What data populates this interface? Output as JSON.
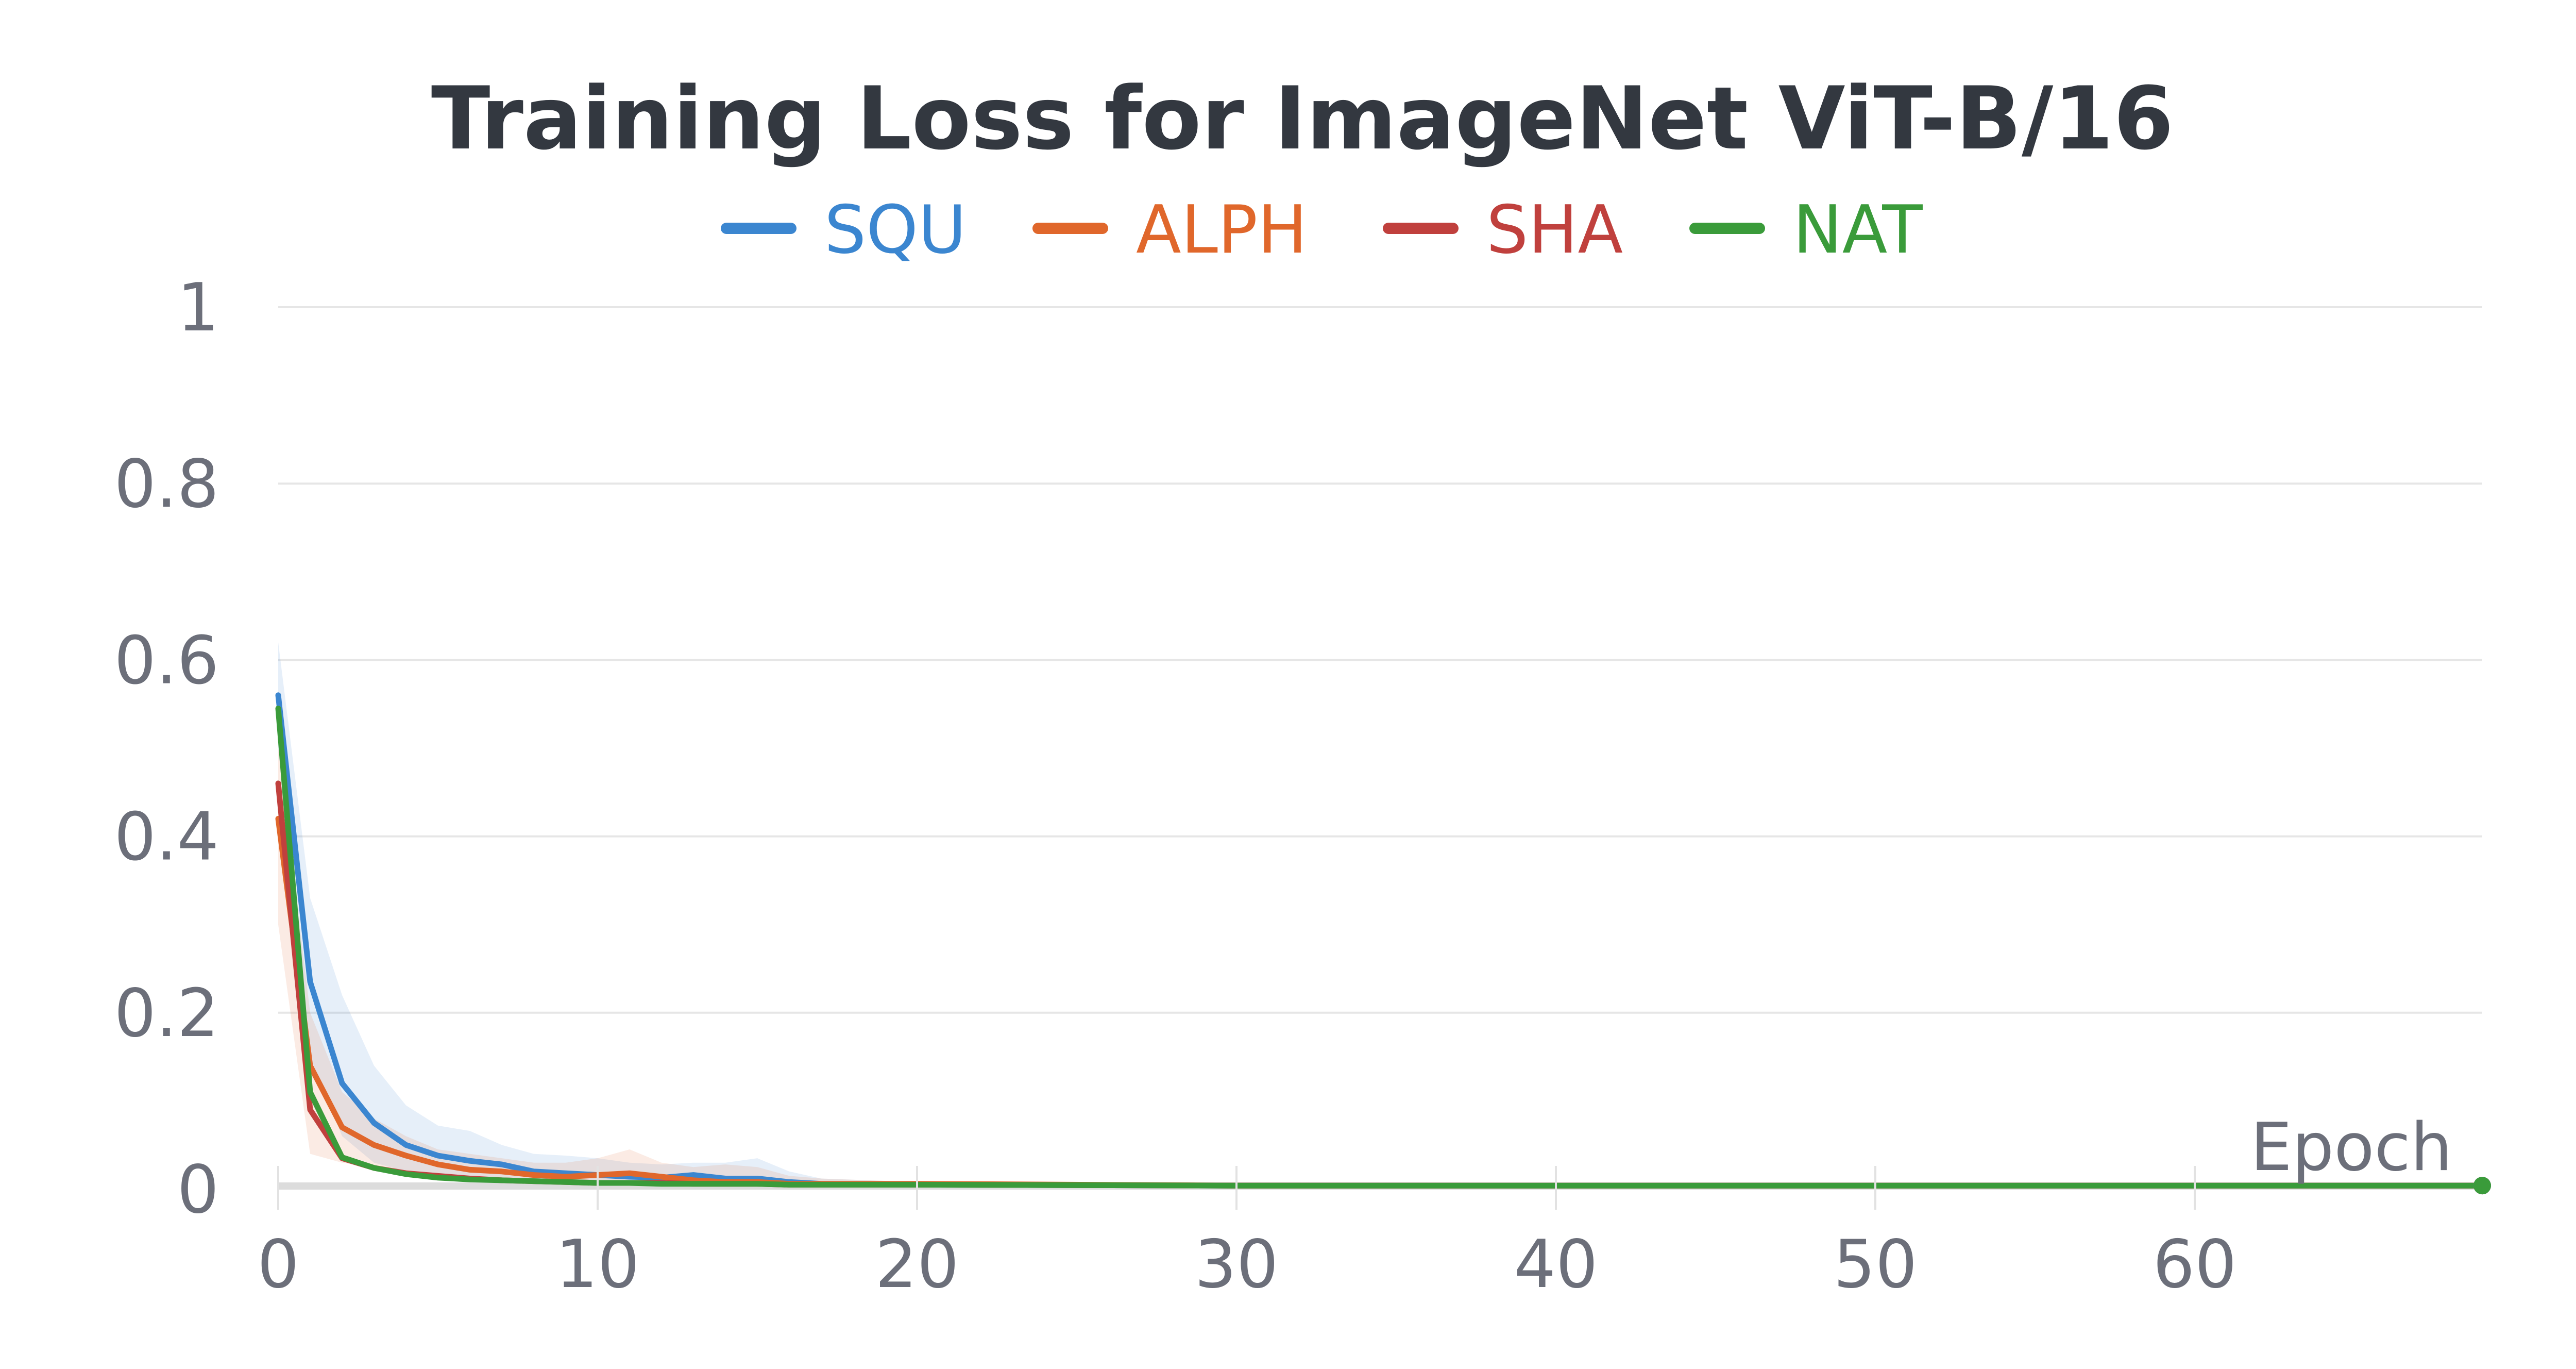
{
  "chart_data": {
    "type": "line",
    "title": "Training Loss for ImageNet ViT-B/16",
    "xlabel": "Epoch",
    "ylabel": "",
    "xlim": [
      0,
      69
    ],
    "ylim": [
      0,
      1
    ],
    "grid": true,
    "legend_position": "top-center",
    "x_ticks": [
      0,
      10,
      20,
      30,
      40,
      50,
      60
    ],
    "y_ticks": [
      0,
      0.2,
      0.4,
      0.6,
      0.8,
      1
    ],
    "y_tick_labels": [
      "0",
      "0.2",
      "0.4",
      "0.6",
      "0.8",
      "1"
    ],
    "series": [
      {
        "name": "SQU",
        "color": "#3b86d0",
        "points": [
          [
            0,
            0.56
          ],
          [
            1,
            0.235
          ],
          [
            2,
            0.12
          ],
          [
            3,
            0.075
          ],
          [
            4,
            0.05
          ],
          [
            5,
            0.038
          ],
          [
            6,
            0.032
          ],
          [
            7,
            0.028
          ],
          [
            8,
            0.02
          ],
          [
            9,
            0.018
          ],
          [
            10,
            0.016
          ],
          [
            11,
            0.014
          ],
          [
            12,
            0.013
          ],
          [
            13,
            0.016
          ],
          [
            14,
            0.012
          ],
          [
            15,
            0.012
          ],
          [
            16,
            0.008
          ],
          [
            17,
            0.006
          ],
          [
            20,
            0.005
          ],
          [
            30,
            0.004
          ],
          [
            40,
            0.004
          ],
          [
            50,
            0.004
          ],
          [
            60,
            0.004
          ],
          [
            69,
            0.004
          ]
        ],
        "band_upper": [
          [
            0,
            0.62
          ],
          [
            1,
            0.33
          ],
          [
            2,
            0.22
          ],
          [
            3,
            0.14
          ],
          [
            4,
            0.095
          ],
          [
            5,
            0.072
          ],
          [
            6,
            0.066
          ],
          [
            7,
            0.05
          ],
          [
            8,
            0.04
          ],
          [
            9,
            0.038
          ],
          [
            10,
            0.035
          ],
          [
            11,
            0.03
          ],
          [
            12,
            0.028
          ],
          [
            13,
            0.03
          ],
          [
            14,
            0.03
          ],
          [
            15,
            0.035
          ],
          [
            16,
            0.02
          ],
          [
            17,
            0.012
          ],
          [
            20,
            0.008
          ],
          [
            69,
            0.006
          ]
        ],
        "band_lower": [
          [
            0,
            0.5
          ],
          [
            1,
            0.15
          ],
          [
            2,
            0.06
          ],
          [
            3,
            0.03
          ],
          [
            4,
            0.02
          ],
          [
            5,
            0.012
          ],
          [
            6,
            0.01
          ],
          [
            7,
            0.008
          ],
          [
            8,
            0.006
          ],
          [
            9,
            0.005
          ],
          [
            10,
            0.004
          ],
          [
            11,
            0.004
          ],
          [
            12,
            0.003
          ],
          [
            13,
            0.004
          ],
          [
            14,
            0.003
          ],
          [
            15,
            0.003
          ],
          [
            16,
            0.002
          ],
          [
            17,
            0.002
          ],
          [
            20,
            0.002
          ],
          [
            69,
            0.002
          ]
        ]
      },
      {
        "name": "ALPH",
        "color": "#e0672b",
        "points": [
          [
            0,
            0.42
          ],
          [
            1,
            0.14
          ],
          [
            2,
            0.07
          ],
          [
            3,
            0.05
          ],
          [
            4,
            0.038
          ],
          [
            5,
            0.028
          ],
          [
            6,
            0.022
          ],
          [
            7,
            0.02
          ],
          [
            8,
            0.016
          ],
          [
            9,
            0.014
          ],
          [
            10,
            0.016
          ],
          [
            11,
            0.018
          ],
          [
            12,
            0.014
          ],
          [
            13,
            0.01
          ],
          [
            14,
            0.008
          ],
          [
            15,
            0.008
          ],
          [
            16,
            0.006
          ],
          [
            17,
            0.006
          ],
          [
            20,
            0.006
          ],
          [
            30,
            0.004
          ],
          [
            40,
            0.004
          ],
          [
            50,
            0.004
          ],
          [
            60,
            0.004
          ],
          [
            69,
            0.004
          ]
        ],
        "band_upper": [
          [
            0,
            0.5
          ],
          [
            1,
            0.2
          ],
          [
            2,
            0.11
          ],
          [
            3,
            0.08
          ],
          [
            4,
            0.06
          ],
          [
            5,
            0.045
          ],
          [
            6,
            0.04
          ],
          [
            7,
            0.035
          ],
          [
            8,
            0.03
          ],
          [
            9,
            0.03
          ],
          [
            10,
            0.035
          ],
          [
            11,
            0.045
          ],
          [
            12,
            0.03
          ],
          [
            13,
            0.025
          ],
          [
            14,
            0.028
          ],
          [
            15,
            0.025
          ],
          [
            16,
            0.015
          ],
          [
            17,
            0.012
          ],
          [
            20,
            0.008
          ],
          [
            69,
            0.006
          ]
        ],
        "band_lower": [
          [
            0,
            0.3
          ],
          [
            1,
            0.04
          ],
          [
            2,
            0.03
          ],
          [
            3,
            0.025
          ],
          [
            4,
            0.02
          ],
          [
            5,
            0.015
          ],
          [
            6,
            0.01
          ],
          [
            7,
            0.008
          ],
          [
            8,
            0.006
          ],
          [
            9,
            0.005
          ],
          [
            10,
            0.005
          ],
          [
            11,
            0.005
          ],
          [
            12,
            0.004
          ],
          [
            13,
            0.004
          ],
          [
            14,
            0.003
          ],
          [
            15,
            0.003
          ],
          [
            16,
            0.002
          ],
          [
            17,
            0.002
          ],
          [
            20,
            0.002
          ],
          [
            69,
            0.002
          ]
        ]
      },
      {
        "name": "SHA",
        "color": "#c0403d",
        "points": [
          [
            0,
            0.46
          ],
          [
            1,
            0.09
          ],
          [
            2,
            0.035
          ],
          [
            3,
            0.024
          ],
          [
            4,
            0.018
          ],
          [
            5,
            0.015
          ],
          [
            6,
            0.012
          ],
          [
            7,
            0.01
          ],
          [
            8,
            0.009
          ],
          [
            9,
            0.008
          ],
          [
            10,
            0.007
          ],
          [
            11,
            0.007
          ],
          [
            12,
            0.007
          ],
          [
            13,
            0.006
          ],
          [
            14,
            0.006
          ],
          [
            15,
            0.006
          ],
          [
            16,
            0.005
          ],
          [
            17,
            0.005
          ],
          [
            20,
            0.005
          ],
          [
            30,
            0.004
          ],
          [
            40,
            0.004
          ],
          [
            50,
            0.004
          ],
          [
            60,
            0.004
          ],
          [
            69,
            0.004
          ]
        ]
      },
      {
        "name": "NAT",
        "color": "#3a9b3a",
        "points": [
          [
            0,
            0.545
          ],
          [
            1,
            0.11
          ],
          [
            2,
            0.036
          ],
          [
            3,
            0.024
          ],
          [
            4,
            0.017
          ],
          [
            5,
            0.013
          ],
          [
            6,
            0.011
          ],
          [
            7,
            0.01
          ],
          [
            8,
            0.009
          ],
          [
            9,
            0.008
          ],
          [
            10,
            0.007
          ],
          [
            11,
            0.007
          ],
          [
            12,
            0.006
          ],
          [
            13,
            0.006
          ],
          [
            14,
            0.006
          ],
          [
            15,
            0.006
          ],
          [
            16,
            0.005
          ],
          [
            17,
            0.005
          ],
          [
            20,
            0.005
          ],
          [
            30,
            0.004
          ],
          [
            40,
            0.004
          ],
          [
            50,
            0.004
          ],
          [
            60,
            0.004
          ],
          [
            69,
            0.004
          ]
        ]
      }
    ]
  }
}
